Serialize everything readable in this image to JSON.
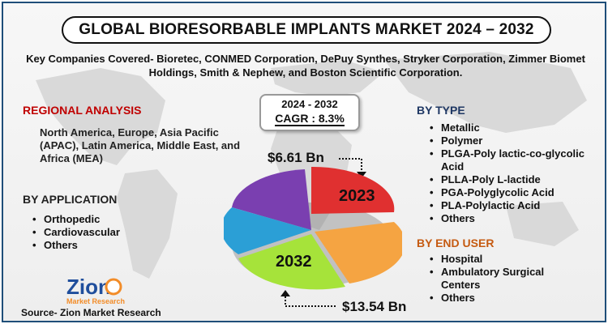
{
  "title": "GLOBAL BIORESORBABLE IMPLANTS MARKET 2024 – 2032",
  "companies": "Key Companies Covered- Bioretec, CONMED Corporation, DePuy Synthes, Stryker Corporation, Zimmer Biomet Holdings, Smith & Nephew, and Boston Scientific Corporation.",
  "regional": {
    "heading": "REGIONAL ANALYSIS",
    "text": "North America, Europe, Asia Pacific (APAC), Latin America, Middle East, and Africa (MEA)"
  },
  "application": {
    "heading": "BY APPLICATION",
    "items": [
      "Orthopedic",
      "Cardiovascular",
      "Others"
    ]
  },
  "cagr": {
    "years": "2024 - 2032",
    "value": "CAGR : 8.3%"
  },
  "market": {
    "value_2023": "$6.61 Bn",
    "value_2032": "$13.54 Bn",
    "label_2023": "2023",
    "label_2032": "2032"
  },
  "by_type": {
    "heading": "BY TYPE",
    "items": [
      "Metallic",
      "Polymer",
      "PLGA-Poly lactic-co-glycolic  Acid",
      "PLLA-Poly L-lactide",
      "PGA-Polyglycolic Acid",
      "PLA-Polylactic Acid",
      "Others"
    ]
  },
  "end_user": {
    "heading": "BY END USER",
    "items": [
      "Hospital",
      "Ambulatory Surgical Centers",
      "Others"
    ]
  },
  "logo": {
    "name": "Zion",
    "sub": "Market Research"
  },
  "source": "Source- Zion Market Research",
  "colors": {
    "red_heading": "#c00000",
    "blue_heading": "#1f3864",
    "orange_heading": "#c55a11",
    "pie_red": "#e03030",
    "pie_orange": "#f5a442",
    "pie_green": "#a6e33a",
    "pie_blue": "#2b9fd6",
    "pie_purple": "#7a3fb0"
  }
}
